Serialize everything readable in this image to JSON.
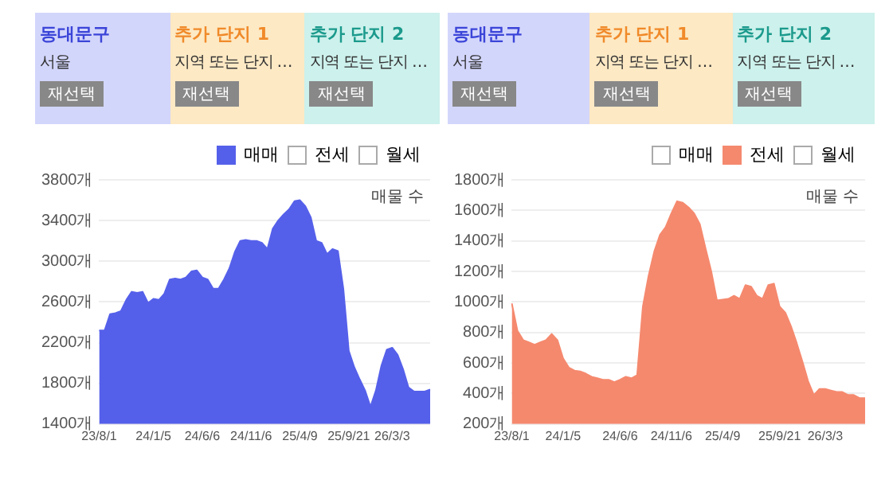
{
  "chart_data": [
    {
      "type": "other",
      "annotations": [
        "동대문구",
        "서울",
        "재선택",
        "추가 단지 1",
        "지역 또는 단지 …",
        "재선택",
        "추가 단지 2",
        "지역 또는 단지 …",
        "재선택"
      ]
    },
    {
      "type": "other",
      "annotations": [
        "동대문구",
        "서울",
        "재선택",
        "추가 단지 1",
        "지역 또는 단지 …",
        "재선택",
        "추가 단지 2",
        "지역 또는 단지 …",
        "재선택"
      ]
    },
    {
      "type": "area",
      "ylabel": "매물 수",
      "legend": "top right",
      "grid": "y",
      "marker": "none",
      "categories": [
        "23/8/1",
        null,
        null,
        null,
        null,
        null,
        null,
        null,
        null,
        null,
        "24/1/5",
        null,
        null,
        null,
        null,
        null,
        null,
        null,
        null,
        "24/6/6",
        null,
        null,
        null,
        null,
        null,
        null,
        null,
        null,
        "24/11/6",
        null,
        null,
        null,
        null,
        null,
        null,
        null,
        null,
        "25/4/9",
        null,
        null,
        null,
        null,
        null,
        null,
        null,
        null,
        "25/9/21",
        null,
        null,
        null,
        null,
        null,
        null,
        null,
        "26/3/3",
        null,
        null,
        null,
        null,
        null,
        null,
        null
      ],
      "ylim": [
        1400,
        3800
      ],
      "yticks": [
        {
          "value": 1400,
          "label": "1400개"
        },
        {
          "value": 1800,
          "label": "1800개"
        },
        {
          "value": 2200,
          "label": "2200개"
        },
        {
          "value": 2600,
          "label": "2600개"
        },
        {
          "value": 3000,
          "label": "3000개"
        },
        {
          "value": 3400,
          "label": "3400개"
        },
        {
          "value": 3800,
          "label": "3800개"
        }
      ],
      "series": [
        {
          "name": "매매",
          "color": "#5560ea",
          "values": [
            2320,
            2320,
            2480,
            2490,
            2510,
            2620,
            2700,
            2690,
            2700,
            2590,
            2630,
            2620,
            2680,
            2820,
            2830,
            2820,
            2840,
            2900,
            2910,
            2840,
            2820,
            2730,
            2730,
            2820,
            2930,
            3090,
            3200,
            3210,
            3200,
            3200,
            3180,
            3120,
            3320,
            3400,
            3460,
            3510,
            3590,
            3600,
            3540,
            3430,
            3200,
            3180,
            3070,
            3120,
            3100,
            2730,
            2120,
            1960,
            1840,
            1730,
            1570,
            1730,
            1970,
            2130,
            2150,
            2080,
            1940,
            1760,
            1720,
            1720,
            1720,
            1740
          ]
        },
        {
          "name": "전세",
          "color": "#ffffff",
          "values": [
            null,
            null,
            null,
            null,
            null,
            null,
            null,
            null,
            null,
            null,
            null,
            null,
            null,
            null,
            null,
            null,
            null,
            null,
            null,
            null,
            null,
            null,
            null,
            null,
            null,
            null,
            null,
            null,
            null,
            null,
            null,
            null,
            null,
            null,
            null,
            null,
            null,
            null,
            null,
            null,
            null,
            null,
            null,
            null,
            null,
            null,
            null,
            null,
            null,
            null,
            null,
            null,
            null,
            null,
            null,
            null,
            null,
            null,
            null,
            null,
            null,
            null
          ]
        },
        {
          "name": "월세",
          "color": "#ffffff",
          "values": [
            null,
            null,
            null,
            null,
            null,
            null,
            null,
            null,
            null,
            null,
            null,
            null,
            null,
            null,
            null,
            null,
            null,
            null,
            null,
            null,
            null,
            null,
            null,
            null,
            null,
            null,
            null,
            null,
            null,
            null,
            null,
            null,
            null,
            null,
            null,
            null,
            null,
            null,
            null,
            null,
            null,
            null,
            null,
            null,
            null,
            null,
            null,
            null,
            null,
            null,
            null,
            null,
            null,
            null,
            null,
            null,
            null,
            null,
            null,
            null,
            null,
            null
          ]
        }
      ]
    },
    {
      "type": "area",
      "ylabel": "매물 수",
      "legend": "top right",
      "grid": "y",
      "marker": "none",
      "categories": [
        "23/8/1",
        null,
        null,
        null,
        null,
        null,
        null,
        null,
        null,
        "24/1/5",
        null,
        null,
        null,
        null,
        null,
        null,
        null,
        null,
        null,
        "24/6/6",
        null,
        null,
        null,
        null,
        null,
        null,
        null,
        null,
        "24/11/6",
        null,
        null,
        null,
        null,
        null,
        null,
        null,
        null,
        "25/4/9",
        null,
        null,
        null,
        null,
        null,
        null,
        null,
        null,
        null,
        "25/9/21",
        null,
        null,
        null,
        null,
        null,
        null,
        null,
        "26/3/3",
        null,
        null,
        null,
        null,
        null,
        null,
        null
      ],
      "ylim": [
        200,
        1800
      ],
      "yticks": [
        {
          "value": 200,
          "label": "200개"
        },
        {
          "value": 400,
          "label": "400개"
        },
        {
          "value": 600,
          "label": "600개"
        },
        {
          "value": 800,
          "label": "800개"
        },
        {
          "value": 1000,
          "label": "1000개"
        },
        {
          "value": 1200,
          "label": "1200개"
        },
        {
          "value": 1400,
          "label": "1400개"
        },
        {
          "value": 1600,
          "label": "1600개"
        },
        {
          "value": 1800,
          "label": "1800개"
        }
      ],
      "series": [
        {
          "name": "매매",
          "color": "#ffffff",
          "values": [
            null,
            null,
            null,
            null,
            null,
            null,
            null,
            null,
            null,
            null,
            null,
            null,
            null,
            null,
            null,
            null,
            null,
            null,
            null,
            null,
            null,
            null,
            null,
            null,
            null,
            null,
            null,
            null,
            null,
            null,
            null,
            null,
            null,
            null,
            null,
            null,
            null,
            null,
            null,
            null,
            null,
            null,
            null,
            null,
            null,
            null,
            null,
            null,
            null,
            null,
            null,
            null,
            null,
            null,
            null,
            null,
            null,
            null,
            null,
            null,
            null,
            null,
            null
          ]
        },
        {
          "name": "전세",
          "color": "#f5896e",
          "values": [
            990,
            810,
            750,
            735,
            720,
            735,
            750,
            790,
            750,
            630,
            570,
            550,
            545,
            530,
            510,
            500,
            490,
            490,
            475,
            490,
            510,
            500,
            520,
            970,
            1170,
            1330,
            1440,
            1490,
            1580,
            1660,
            1650,
            1620,
            1580,
            1510,
            1350,
            1200,
            1010,
            1015,
            1020,
            1040,
            1020,
            1110,
            1100,
            1040,
            1020,
            1110,
            1120,
            970,
            930,
            840,
            730,
            610,
            480,
            390,
            430,
            430,
            420,
            410,
            410,
            390,
            390,
            370,
            370
          ]
        },
        {
          "name": "월세",
          "color": "#ffffff",
          "values": [
            null,
            null,
            null,
            null,
            null,
            null,
            null,
            null,
            null,
            null,
            null,
            null,
            null,
            null,
            null,
            null,
            null,
            null,
            null,
            null,
            null,
            null,
            null,
            null,
            null,
            null,
            null,
            null,
            null,
            null,
            null,
            null,
            null,
            null,
            null,
            null,
            null,
            null,
            null,
            null,
            null,
            null,
            null,
            null,
            null,
            null,
            null,
            null,
            null,
            null,
            null,
            null,
            null,
            null,
            null,
            null,
            null,
            null,
            null,
            null,
            null,
            null,
            null
          ]
        }
      ]
    }
  ]
}
